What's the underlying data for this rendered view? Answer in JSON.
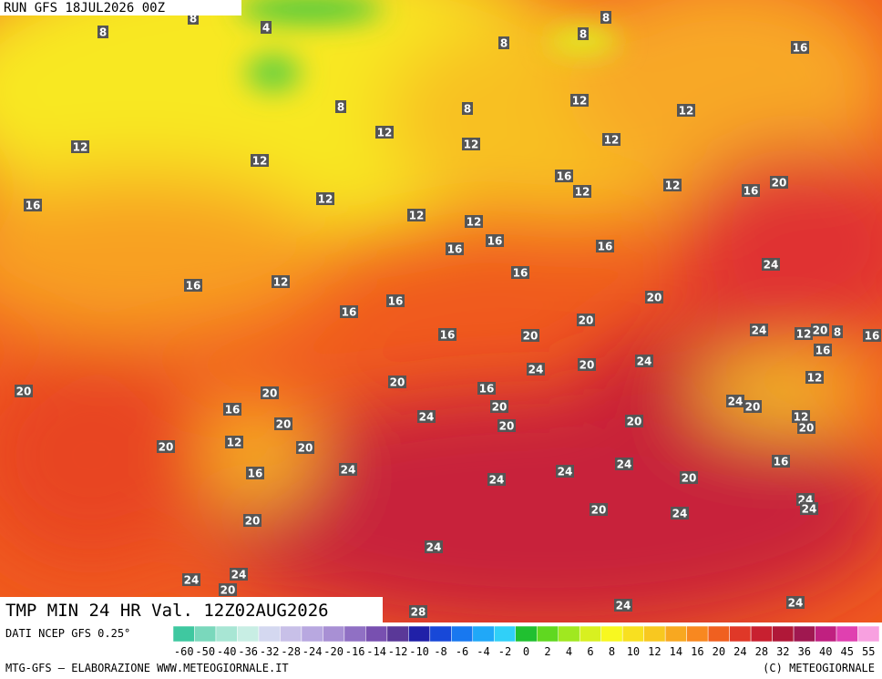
{
  "header": {
    "run": "RUN GFS 18JUL2026 00Z"
  },
  "title": "TMP MIN 24 HR Val. 12Z02AUG2026",
  "source": "DATI NCEP GFS 0.25°",
  "credit_left": "MTG-GFS — ELABORAZIONE WWW.METEOGIORNALE.IT",
  "credit_right": "(C) METEOGIORNALE",
  "colorbar": {
    "labels": [
      -60,
      -50,
      -40,
      -36,
      -32,
      -28,
      -24,
      -20,
      -16,
      -14,
      -12,
      -10,
      -8,
      -6,
      -4,
      -2,
      0,
      2,
      4,
      6,
      8,
      10,
      12,
      14,
      16,
      20,
      24,
      28,
      32,
      36,
      40,
      45,
      55
    ],
    "colors": [
      "#3fc8a0",
      "#7ad8bc",
      "#a8e6d4",
      "#c8eee4",
      "#d4d8f0",
      "#c8c0e8",
      "#b8a8e0",
      "#a890d4",
      "#9070c4",
      "#7850b0",
      "#5a3898",
      "#2020a8",
      "#1848d8",
      "#1878f0",
      "#20a8f8",
      "#30d0f8",
      "#20c030",
      "#60d820",
      "#a0e820",
      "#d8f020",
      "#f8f820",
      "#f8e020",
      "#f8c820",
      "#f8a820",
      "#f88820",
      "#f06020",
      "#e03828",
      "#c82030",
      "#b01838",
      "#a01850",
      "#c02080",
      "#e040b0",
      "#f8a0e0"
    ]
  },
  "map_labels": [
    8,
    8,
    4,
    8,
    8,
    8,
    8,
    8,
    16,
    12,
    12,
    12,
    12,
    12,
    12,
    12,
    16,
    12,
    12,
    16,
    20,
    16,
    12,
    12,
    12,
    16,
    16,
    16,
    24,
    16,
    12,
    16,
    20,
    16,
    16,
    20,
    24,
    12,
    20,
    8,
    16,
    16,
    20,
    16,
    24,
    24,
    20,
    12,
    20,
    20,
    20,
    16,
    24,
    20,
    16,
    20,
    24,
    20,
    20,
    12,
    20,
    20,
    12,
    20,
    20,
    16,
    16,
    24,
    24,
    24,
    24,
    20,
    24,
    24,
    20,
    24,
    20,
    24,
    24,
    24,
    20,
    24,
    24,
    28
  ]
}
